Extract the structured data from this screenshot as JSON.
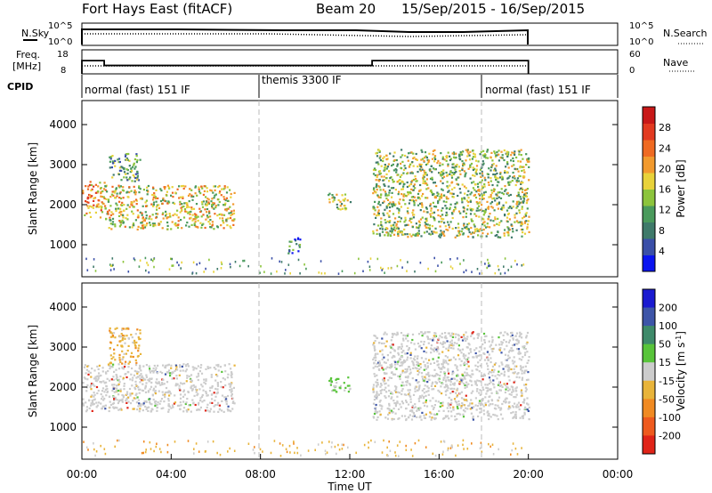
{
  "header": {
    "station": "Fort Hays East (fitACF)",
    "beam": "Beam 20",
    "date_range": "15/Sep/2015 - 16/Sep/2015"
  },
  "summary_panels": {
    "nsky": {
      "label": "N.Sky",
      "ticks": [
        "10^5",
        "10^0"
      ]
    },
    "nsearch": {
      "label": "N.Search",
      "ticks": [
        "10^5",
        "10^0"
      ]
    },
    "freq": {
      "label_line1": "Freq.",
      "label_line2": "[MHz]",
      "ticks": [
        "18",
        "8"
      ]
    },
    "nave": {
      "label": "Nave",
      "ticks": [
        "60",
        "0"
      ]
    },
    "cpid": {
      "label": "CPID",
      "segments": [
        {
          "name": "normal (fast) 151 IF",
          "start_h": 0,
          "end_h": 8
        },
        {
          "name": "themis 3300 IF",
          "start_h": 8,
          "end_h": 18
        },
        {
          "name": "normal (fast) 151 IF",
          "start_h": 18,
          "end_h": 20
        }
      ]
    },
    "frequency_steps": [
      {
        "start_h": 0,
        "end_h": 1,
        "value": 13.5
      },
      {
        "start_h": 1,
        "end_h": 13,
        "value": 11.5
      },
      {
        "start_h": 13,
        "end_h": 20,
        "value": 13.5
      }
    ]
  },
  "chart_data": [
    {
      "type": "heatmap",
      "title": "",
      "xlabel": "Time UT",
      "ylabel": "Slant Range [km]",
      "xlim": [
        0,
        24
      ],
      "ylim": [
        200,
        4600
      ],
      "x_ticks": [
        "00:00",
        "04:00",
        "08:00",
        "12:00",
        "16:00",
        "20:00",
        "00:00"
      ],
      "y_ticks": [
        "1000",
        "2000",
        "3000",
        "4000"
      ],
      "colorbar": {
        "label": "Power [dB]",
        "ticks": [
          "4",
          "8",
          "12",
          "16",
          "20",
          "24",
          "28"
        ],
        "colors": [
          "#0a14f0",
          "#3a4fa8",
          "#3f7a6a",
          "#4a9a5c",
          "#8cc43c",
          "#e8d23a",
          "#f29a2e",
          "#ef6a22",
          "#e23a20",
          "#c81818"
        ]
      },
      "echo_regions": [
        {
          "t_start": 0.0,
          "t_end": 1.0,
          "range_low": 1700,
          "range_high": 2600,
          "level": 6
        },
        {
          "t_start": 1.0,
          "t_end": 6.8,
          "range_low": 1400,
          "range_high": 2500,
          "level": 5
        },
        {
          "t_start": 1.2,
          "t_end": 2.6,
          "range_low": 2600,
          "range_high": 3300,
          "level": 3
        },
        {
          "t_start": 9.2,
          "t_end": 9.8,
          "range_low": 800,
          "range_high": 1200,
          "level": 2
        },
        {
          "t_start": 11.0,
          "t_end": 12.0,
          "range_low": 1900,
          "range_high": 2300,
          "level": 4
        },
        {
          "t_start": 13.0,
          "t_end": 20.0,
          "range_low": 1200,
          "range_high": 3400,
          "level": 4
        }
      ],
      "dashed_markers_h": [
        8,
        18
      ]
    },
    {
      "type": "heatmap",
      "title": "",
      "xlabel": "Time UT",
      "ylabel": "Slant Range [km]",
      "xlim": [
        0,
        24
      ],
      "ylim": [
        200,
        4600
      ],
      "x_ticks": [
        "00:00",
        "04:00",
        "08:00",
        "12:00",
        "16:00",
        "20:00",
        "00:00"
      ],
      "y_ticks": [
        "1000",
        "2000",
        "3000",
        "4000"
      ],
      "colorbar": {
        "label": "Velocity [m s^-1]",
        "ticks": [
          "200",
          "100",
          "50",
          "15",
          "-15",
          "-50",
          "-100",
          "-200"
        ],
        "colors": [
          "#1a1ad0",
          "#3d55a8",
          "#3e8a6a",
          "#58c43a",
          "#cccccc",
          "#e8b43a",
          "#f08a22",
          "#ee5a1e",
          "#e02418"
        ]
      },
      "echo_regions": [
        {
          "t_start": 0.0,
          "t_end": 6.8,
          "range_low": 1400,
          "range_high": 2600,
          "velocity": "-15 to 15"
        },
        {
          "t_start": 1.2,
          "t_end": 2.6,
          "range_low": 2600,
          "range_high": 3500,
          "velocity": "-50"
        },
        {
          "t_start": 11.0,
          "t_end": 12.0,
          "range_low": 1900,
          "range_high": 2300,
          "velocity": "50"
        },
        {
          "t_start": 13.0,
          "t_end": 20.0,
          "range_low": 1200,
          "range_high": 3400,
          "velocity": "-15 to 15"
        }
      ],
      "dashed_markers_h": [
        8,
        18
      ]
    }
  ]
}
